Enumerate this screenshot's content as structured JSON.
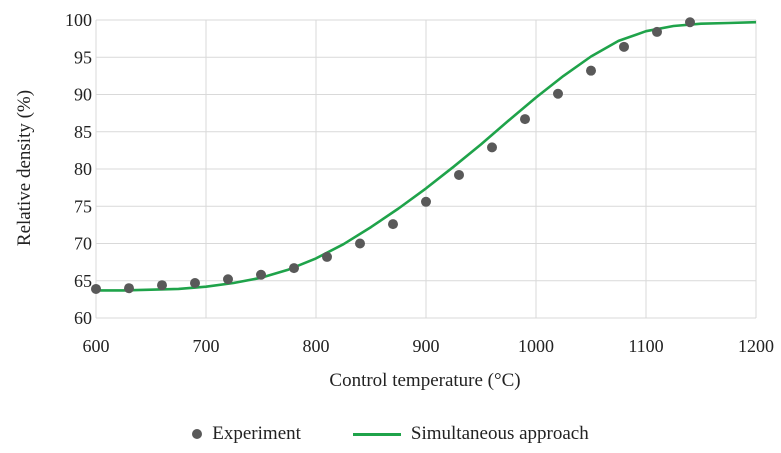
{
  "chart_data": {
    "type": "scatter",
    "xlabel": "Control temperature (°C)",
    "ylabel": "Relative density (%)",
    "xlim": [
      600,
      1200
    ],
    "ylim": [
      60,
      100
    ],
    "xticks": [
      600,
      700,
      800,
      900,
      1000,
      1100,
      1200
    ],
    "yticks": [
      60,
      65,
      70,
      75,
      80,
      85,
      90,
      95,
      100
    ],
    "grid": true,
    "legend_position": "bottom",
    "series": [
      {
        "name": "Experiment",
        "kind": "points",
        "color": "#595959",
        "x": [
          600,
          630,
          660,
          690,
          720,
          750,
          780,
          810,
          840,
          870,
          900,
          930,
          960,
          990,
          1020,
          1050,
          1080,
          1110,
          1140
        ],
        "y": [
          63.9,
          64.0,
          64.4,
          64.7,
          65.2,
          65.8,
          66.7,
          68.2,
          70.0,
          72.6,
          75.6,
          79.2,
          82.9,
          86.7,
          90.1,
          93.2,
          96.4,
          98.4,
          99.7
        ]
      },
      {
        "name": "Simultaneous approach",
        "kind": "line",
        "color": "#1fa34a",
        "x": [
          600,
          625,
          650,
          675,
          700,
          725,
          750,
          775,
          800,
          825,
          850,
          875,
          900,
          925,
          950,
          975,
          1000,
          1025,
          1050,
          1075,
          1100,
          1125,
          1150,
          1175,
          1200
        ],
        "y": [
          63.7,
          63.7,
          63.8,
          63.9,
          64.2,
          64.7,
          65.4,
          66.5,
          68.0,
          69.9,
          72.2,
          74.7,
          77.4,
          80.3,
          83.3,
          86.5,
          89.6,
          92.5,
          95.1,
          97.2,
          98.5,
          99.2,
          99.5,
          99.6,
          99.7
        ]
      }
    ]
  }
}
